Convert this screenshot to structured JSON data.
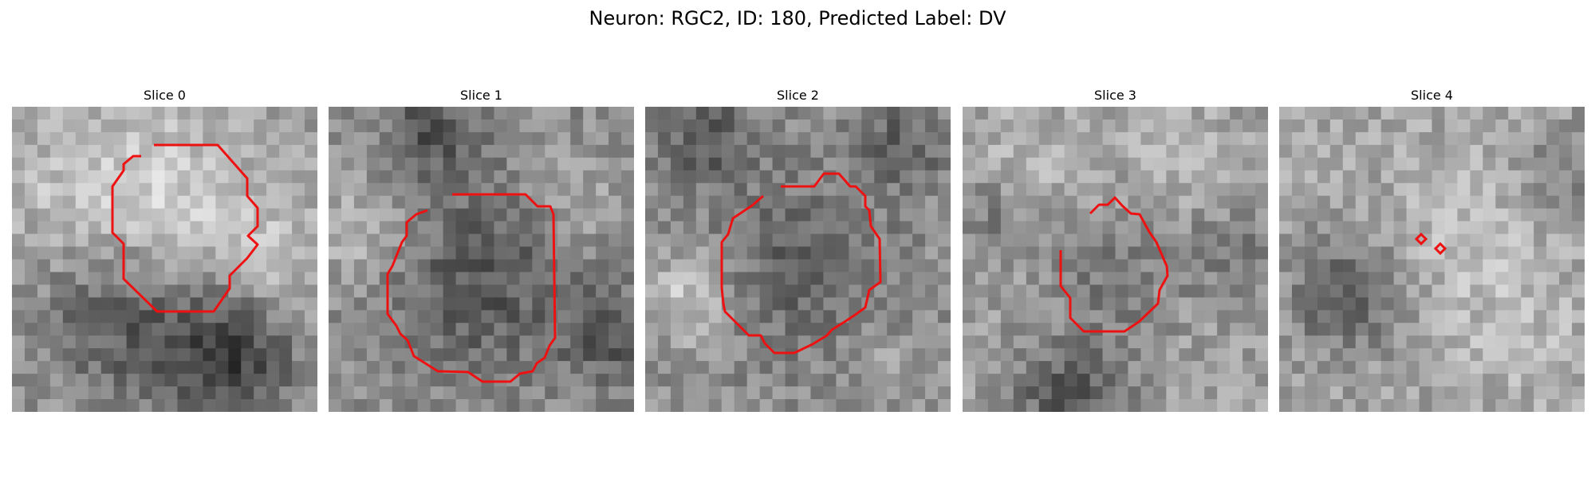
{
  "figure": {
    "title": "Neuron: RGC2, ID: 180, Predicted Label: DV",
    "colormap": "gray",
    "contour_color": "#ee1111"
  },
  "slices": [
    {
      "title": "Slice 0"
    },
    {
      "title": "Slice 1"
    },
    {
      "title": "Slice 2"
    },
    {
      "title": "Slice 3"
    },
    {
      "title": "Slice 4"
    }
  ]
}
